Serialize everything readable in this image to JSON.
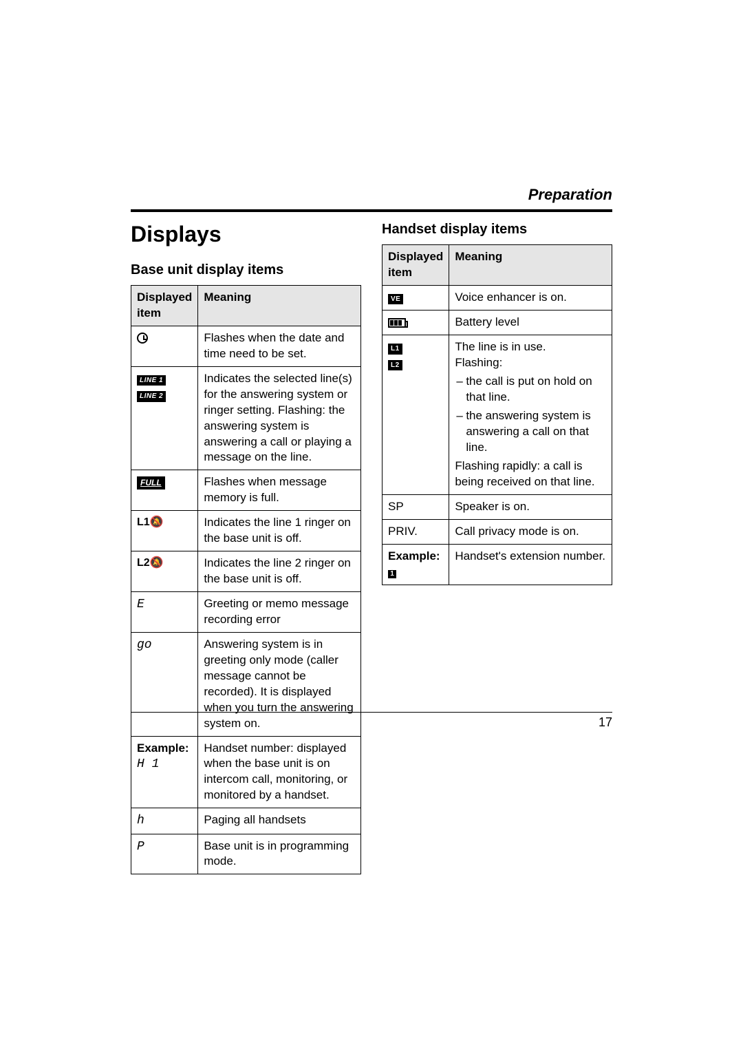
{
  "header": {
    "section_label": "Preparation"
  },
  "left": {
    "title": "Displays",
    "subtitle": "Base unit display items",
    "table": {
      "col_displayed": "Displayed item",
      "col_meaning": "Meaning",
      "rows": {
        "clock": {
          "meaning": "Flashes when the date and time need to be set."
        },
        "lines": {
          "badge1": "LINE 1",
          "badge2": "LINE 2",
          "meaning": "Indicates the selected line(s) for the answering system or ringer setting. Flashing: the answering system is answering a call or playing a message on the line."
        },
        "full": {
          "badge": "FULL",
          "meaning": "Flashes when message memory is full."
        },
        "l1off": {
          "label": "L1",
          "meaning": "Indicates the line 1 ringer on the base unit is off."
        },
        "l2off": {
          "label": "L2",
          "meaning": "Indicates the line 2 ringer on the base unit is off."
        },
        "err": {
          "label": "E",
          "meaning": "Greeting or memo message recording error"
        },
        "go": {
          "label": "go",
          "meaning": "Answering system is in greeting only mode (caller message cannot be recorded). It is displayed when you turn the answering system on."
        },
        "example": {
          "label_strong": "Example:",
          "label_seg": "H 1",
          "meaning": "Handset number: displayed when the base unit is on intercom call, monitoring, or monitored by a handset."
        },
        "paging": {
          "label": "h",
          "meaning": "Paging all handsets"
        },
        "prog": {
          "label": "P",
          "meaning": "Base unit is in programming mode."
        }
      }
    }
  },
  "right": {
    "subtitle": "Handset display items",
    "table": {
      "col_displayed": "Displayed item",
      "col_meaning": "Meaning",
      "rows": {
        "ve": {
          "badge": "VE",
          "meaning": "Voice enhancer is on."
        },
        "batt": {
          "meaning": "Battery level"
        },
        "lines": {
          "badge1": "L1",
          "badge2": "L2",
          "lead": "The line is in use.",
          "flashing_label": "Flashing:",
          "bullet1": "the call is put on hold on that line.",
          "bullet2": "the answering system is answering a call on that line.",
          "tail": "Flashing rapidly: a call is being received on that line."
        },
        "sp": {
          "label": "SP",
          "meaning": "Speaker is on."
        },
        "priv": {
          "label": "PRIV.",
          "meaning": "Call privacy mode is on."
        },
        "example": {
          "label_strong": "Example:",
          "square": "1",
          "meaning": "Handset's extension number."
        }
      }
    }
  },
  "footer": {
    "page_number": "17"
  }
}
